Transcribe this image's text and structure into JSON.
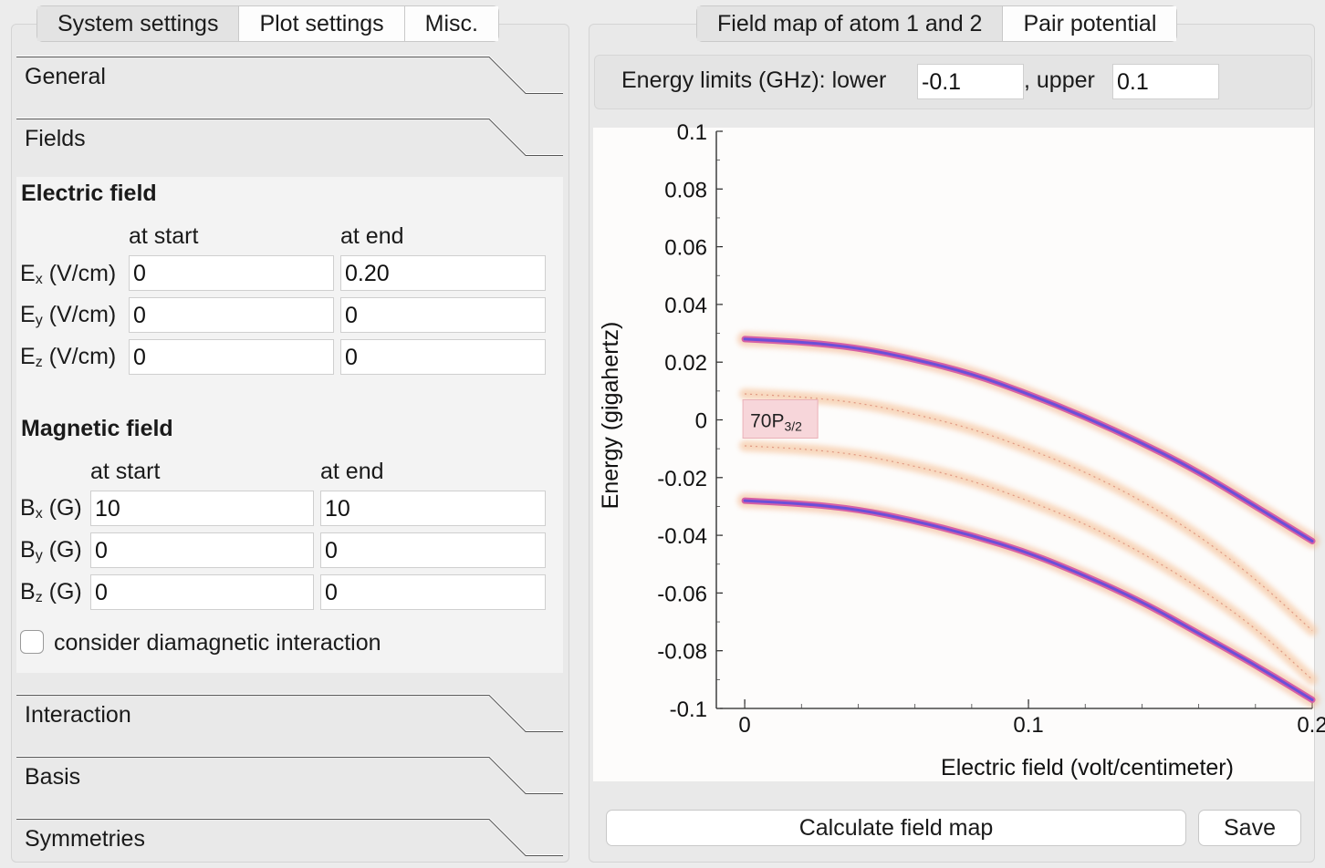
{
  "left_tabs": [
    "System settings",
    "Plot settings",
    "Misc."
  ],
  "right_tabs": [
    "Field map of atom 1 and 2",
    "Pair potential"
  ],
  "sections": {
    "general": "General",
    "fields": "Fields",
    "interaction": "Interaction",
    "basis": "Basis",
    "symmetries": "Symmetries"
  },
  "electric_field": {
    "title": "Electric field",
    "col_start": "at start",
    "col_end": "at end",
    "rows": [
      {
        "label": "E",
        "sub": "x",
        "unit": " (V/cm)",
        "start": "0",
        "end": "0.20"
      },
      {
        "label": "E",
        "sub": "y",
        "unit": " (V/cm)",
        "start": "0",
        "end": "0"
      },
      {
        "label": "E",
        "sub": "z",
        "unit": " (V/cm)",
        "start": "0",
        "end": "0"
      }
    ]
  },
  "magnetic_field": {
    "title": "Magnetic field",
    "col_start": "at start",
    "col_end": "at end",
    "rows": [
      {
        "label": "B",
        "sub": "x",
        "unit": " (G)",
        "start": "10",
        "end": "10"
      },
      {
        "label": "B",
        "sub": "y",
        "unit": " (G)",
        "start": "0",
        "end": "0"
      },
      {
        "label": "B",
        "sub": "z",
        "unit": " (G)",
        "start": "0",
        "end": "0"
      }
    ]
  },
  "diamagnetic": {
    "label": "consider diamagnetic interaction",
    "checked": false
  },
  "energy_limits": {
    "label": "Energy limits (GHz): lower",
    "lower": "-0.1",
    "upper_label": ", upper",
    "upper": "0.1"
  },
  "buttons": {
    "calculate": "Calculate field map",
    "save": "Save"
  },
  "chart_data": {
    "type": "line",
    "xlabel": "Electric field (volt/centimeter)",
    "ylabel": "Energy (gigahertz)",
    "xlim": [
      -0.01,
      0.2
    ],
    "ylim": [
      -0.1,
      0.1
    ],
    "xticks": [
      "0",
      "0.1",
      "0.2"
    ],
    "xtick_values": [
      0,
      0.1,
      0.2
    ],
    "yticks": [
      "0.1",
      "0.08",
      "0.06",
      "0.04",
      "0.02",
      "0",
      "-0.02",
      "-0.04",
      "-0.06",
      "-0.08",
      "-0.1"
    ],
    "ytick_values": [
      0.1,
      0.08,
      0.06,
      0.04,
      0.02,
      0,
      -0.02,
      -0.04,
      -0.06,
      -0.08,
      -0.1
    ],
    "state_label": {
      "main": "70P",
      "sub": "3/2",
      "x": 0,
      "y": 0
    },
    "series": [
      {
        "style": "strong",
        "x": [
          0,
          0.02,
          0.04,
          0.06,
          0.08,
          0.1,
          0.12,
          0.14,
          0.16,
          0.18,
          0.2
        ],
        "y": [
          0.028,
          0.027,
          0.025,
          0.021,
          0.016,
          0.009,
          0.001,
          -0.008,
          -0.018,
          -0.03,
          -0.042
        ]
      },
      {
        "style": "faint",
        "x": [
          0,
          0.02,
          0.04,
          0.06,
          0.08,
          0.1,
          0.12,
          0.14,
          0.16,
          0.18,
          0.2
        ],
        "y": [
          0.009,
          0.008,
          0.006,
          0.002,
          -0.003,
          -0.01,
          -0.018,
          -0.028,
          -0.04,
          -0.055,
          -0.073
        ]
      },
      {
        "style": "faint",
        "x": [
          0,
          0.02,
          0.04,
          0.06,
          0.08,
          0.1,
          0.12,
          0.14,
          0.16,
          0.18,
          0.2
        ],
        "y": [
          -0.009,
          -0.01,
          -0.012,
          -0.016,
          -0.021,
          -0.028,
          -0.036,
          -0.046,
          -0.058,
          -0.072,
          -0.09
        ]
      },
      {
        "style": "strong",
        "x": [
          0,
          0.02,
          0.04,
          0.06,
          0.08,
          0.1,
          0.12,
          0.14,
          0.16,
          0.18,
          0.2
        ],
        "y": [
          -0.028,
          -0.029,
          -0.031,
          -0.035,
          -0.04,
          -0.046,
          -0.054,
          -0.063,
          -0.074,
          -0.085,
          -0.097
        ]
      }
    ]
  }
}
